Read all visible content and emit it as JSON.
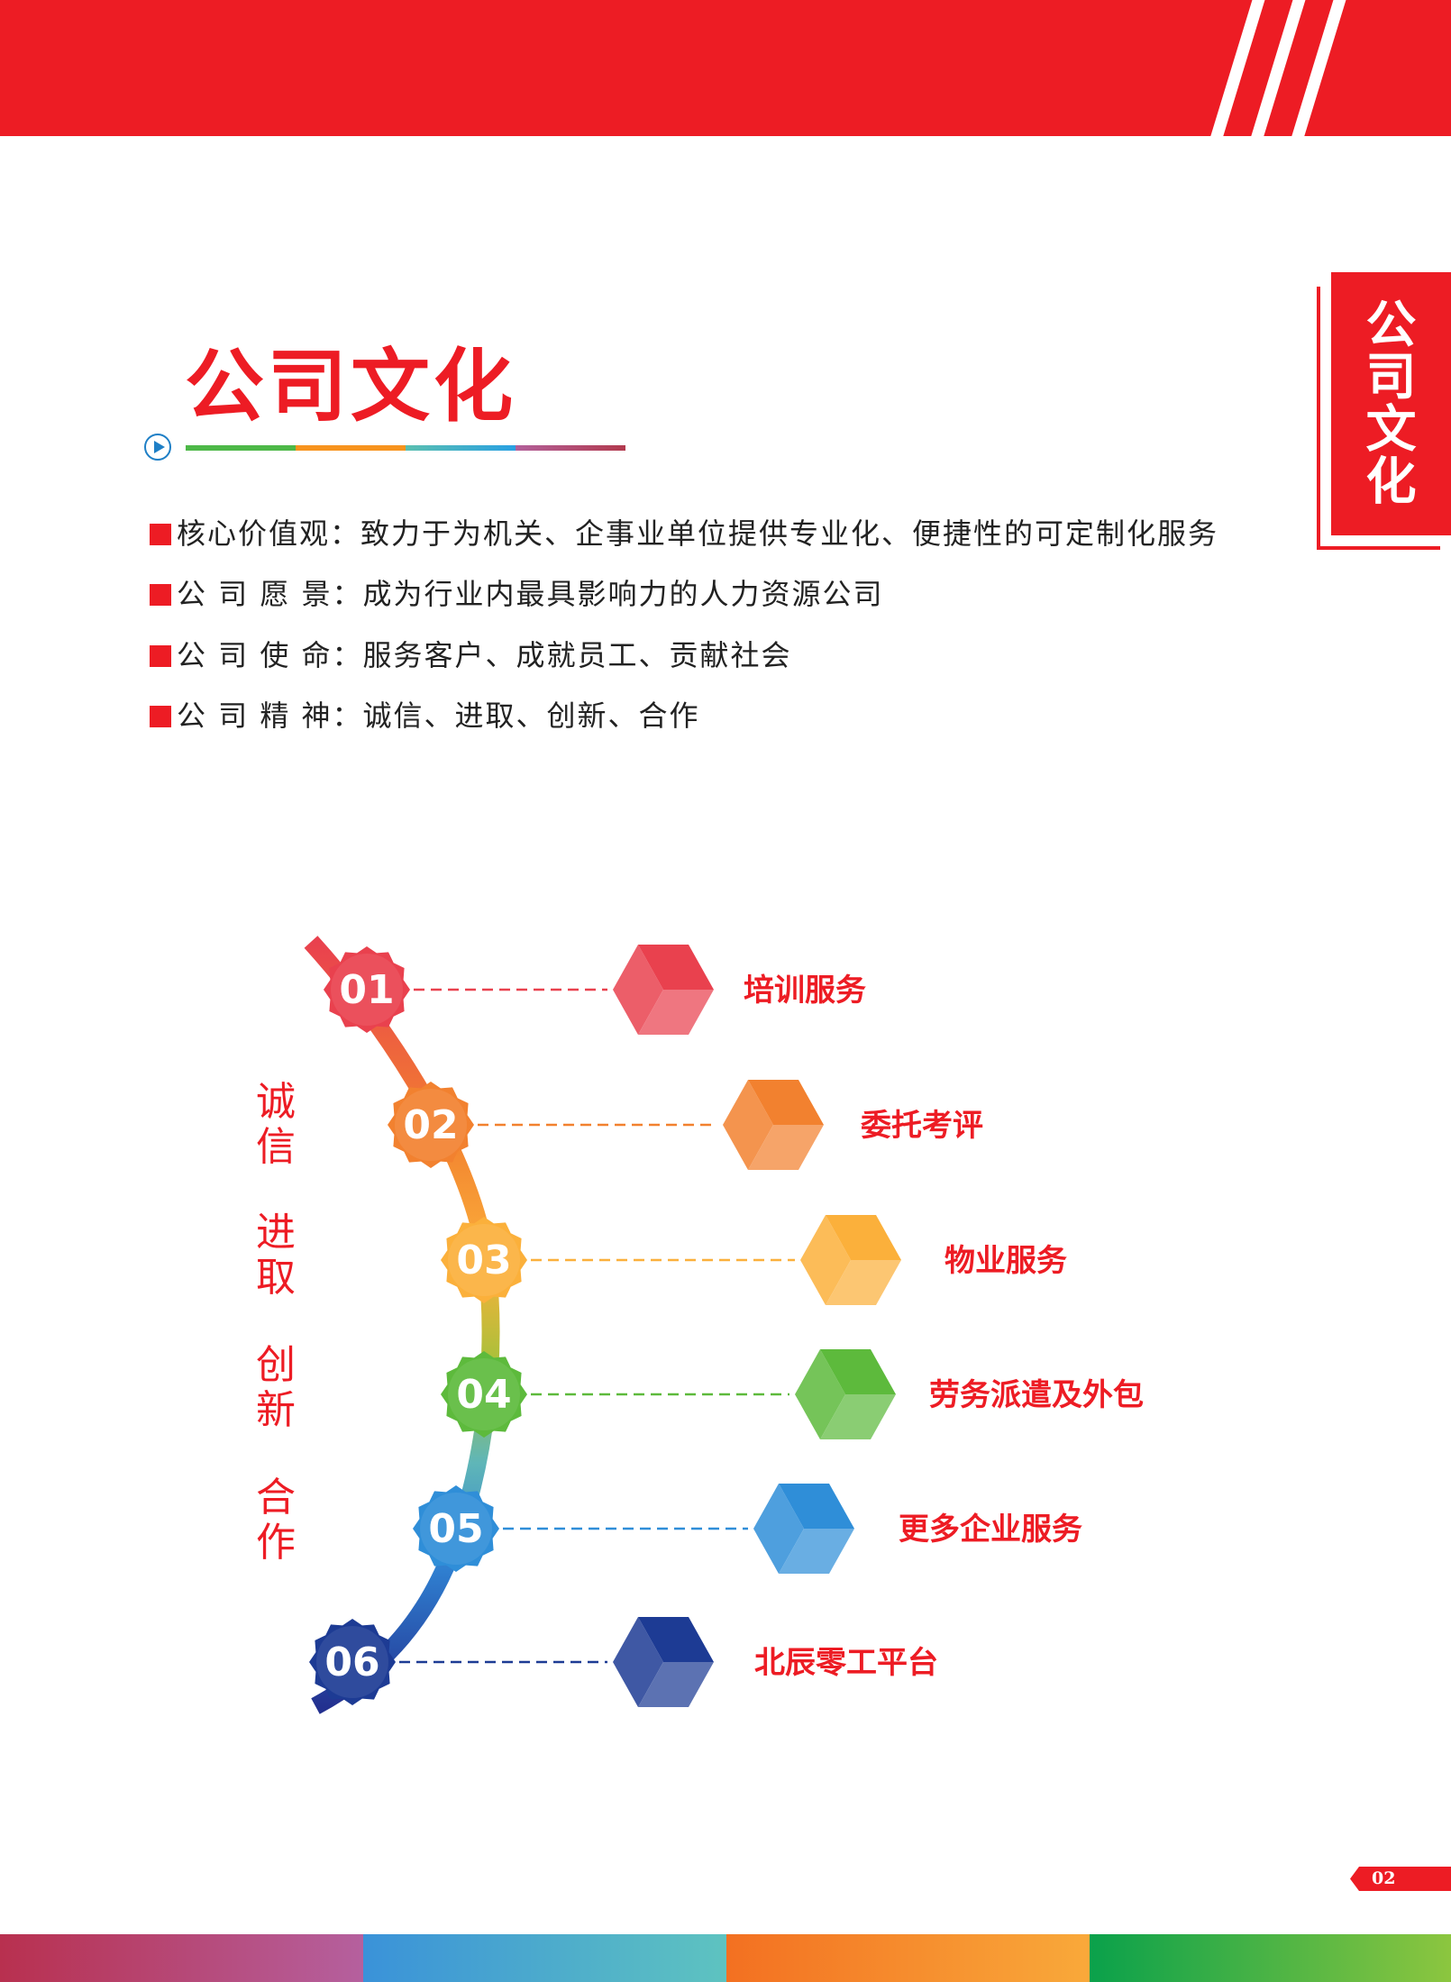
{
  "page_title": "公司文化",
  "side_tab": "公司文化",
  "page_number": "02",
  "bullets": [
    {
      "label": "核心价值观：",
      "text": "致力于为机关、企事业单位提供专业化、便捷性的可定制化服务"
    },
    {
      "label": "公 司 愿 景：",
      "text": "成为行业内最具影响力的人力资源公司"
    },
    {
      "label": "公 司 使 命：",
      "text": "服务客户、成就员工、贡献社会"
    },
    {
      "label": "公 司 精 神：",
      "text": "诚信、进取、创新、合作"
    }
  ],
  "spirit_words": [
    "诚信",
    "进取",
    "创新",
    "合作"
  ],
  "services": [
    {
      "num": "01",
      "label": "培训服务",
      "color": "#e9414e"
    },
    {
      "num": "02",
      "label": "委托考评",
      "color": "#f2812f"
    },
    {
      "num": "03",
      "label": "物业服务",
      "color": "#fbb03b"
    },
    {
      "num": "04",
      "label": "劳务派遣及外包",
      "color": "#5dba3c"
    },
    {
      "num": "05",
      "label": "更多企业服务",
      "color": "#2f8ed8"
    },
    {
      "num": "06",
      "label": "北辰零工平台",
      "color": "#1d3b94"
    }
  ],
  "colors": {
    "brand_red": "#ed1c24",
    "underline": [
      "#4db848",
      "#f7931e",
      "#29abe2",
      "#b23a6e"
    ],
    "bottom_band": [
      "#b8305a",
      "#3a9ad9",
      "#f58220",
      "#17a550"
    ]
  }
}
